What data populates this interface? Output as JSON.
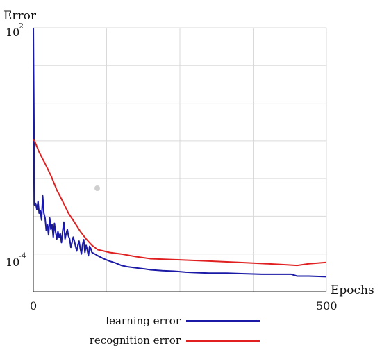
{
  "chart_data": {
    "type": "line",
    "ylabel": "Error",
    "xlabel": "Epochs",
    "xlim": [
      0,
      500
    ],
    "yscale": "log",
    "ylim": [
      1e-05,
      100
    ],
    "x_tick_labels": [
      "0",
      "500"
    ],
    "y_tick_labels": [
      {
        "base": "10",
        "exp": "2",
        "value": 100
      },
      {
        "base": "10",
        "exp": "-4",
        "value": 0.0001
      }
    ],
    "grid": true,
    "legend": "bottom",
    "series": [
      {
        "name": "learning error",
        "color": "#1a1aa6",
        "x": [
          0,
          1,
          2,
          4,
          6,
          8,
          10,
          12,
          14,
          16,
          18,
          20,
          22,
          24,
          26,
          28,
          30,
          32,
          34,
          36,
          38,
          40,
          42,
          44,
          46,
          48,
          50,
          52,
          54,
          56,
          58,
          60,
          62,
          64,
          66,
          68,
          70,
          72,
          74,
          76,
          78,
          80,
          82,
          84,
          86,
          88,
          90,
          92,
          94,
          96,
          98,
          100,
          105,
          110,
          120,
          130,
          140,
          150,
          160,
          170,
          180,
          190,
          200,
          220,
          240,
          260,
          280,
          300,
          330,
          360,
          390,
          420,
          440,
          450,
          470,
          500
        ],
        "y": [
          100,
          1,
          0.002,
          0.0022,
          0.0015,
          0.0025,
          0.0012,
          0.0014,
          0.0008,
          0.0035,
          0.0012,
          0.0009,
          0.00042,
          0.0006,
          0.00032,
          0.0009,
          0.00045,
          0.0006,
          0.00028,
          0.00065,
          0.00038,
          0.00025,
          0.0004,
          0.00028,
          0.00035,
          0.0002,
          0.0004,
          0.0007,
          0.00025,
          0.00035,
          0.00045,
          0.0003,
          0.00025,
          0.00015,
          0.0002,
          0.00028,
          0.00022,
          0.00016,
          0.00012,
          0.00017,
          0.00022,
          0.00014,
          0.0001,
          0.00018,
          0.00024,
          0.00011,
          0.00017,
          0.00013,
          9e-05,
          0.00016,
          0.00014,
          0.00011,
          0.0001,
          9e-05,
          7.5e-05,
          6.5e-05,
          5.8e-05,
          5e-05,
          4.6e-05,
          4.4e-05,
          4.2e-05,
          4e-05,
          3.8e-05,
          3.6e-05,
          3.5e-05,
          3.3e-05,
          3.2e-05,
          3.1e-05,
          3.1e-05,
          3e-05,
          2.9e-05,
          2.9e-05,
          2.9e-05,
          2.6e-05,
          2.6e-05,
          2.5e-05
        ]
      },
      {
        "name": "recognition error",
        "color": "#e02020",
        "x": [
          0,
          2,
          10,
          20,
          30,
          40,
          50,
          60,
          70,
          80,
          90,
          100,
          110,
          120,
          130,
          150,
          175,
          200,
          250,
          300,
          350,
          400,
          430,
          450,
          470,
          500
        ],
        "y": [
          0.11,
          0.1,
          0.05,
          0.025,
          0.012,
          0.005,
          0.0025,
          0.0012,
          0.0007,
          0.0004,
          0.00025,
          0.00017,
          0.00013,
          0.00012,
          0.00011,
          0.0001,
          8.5e-05,
          7.5e-05,
          7e-05,
          6.5e-05,
          6e-05,
          5.5e-05,
          5.2e-05,
          5e-05,
          5.5e-05,
          6e-05
        ]
      }
    ]
  }
}
